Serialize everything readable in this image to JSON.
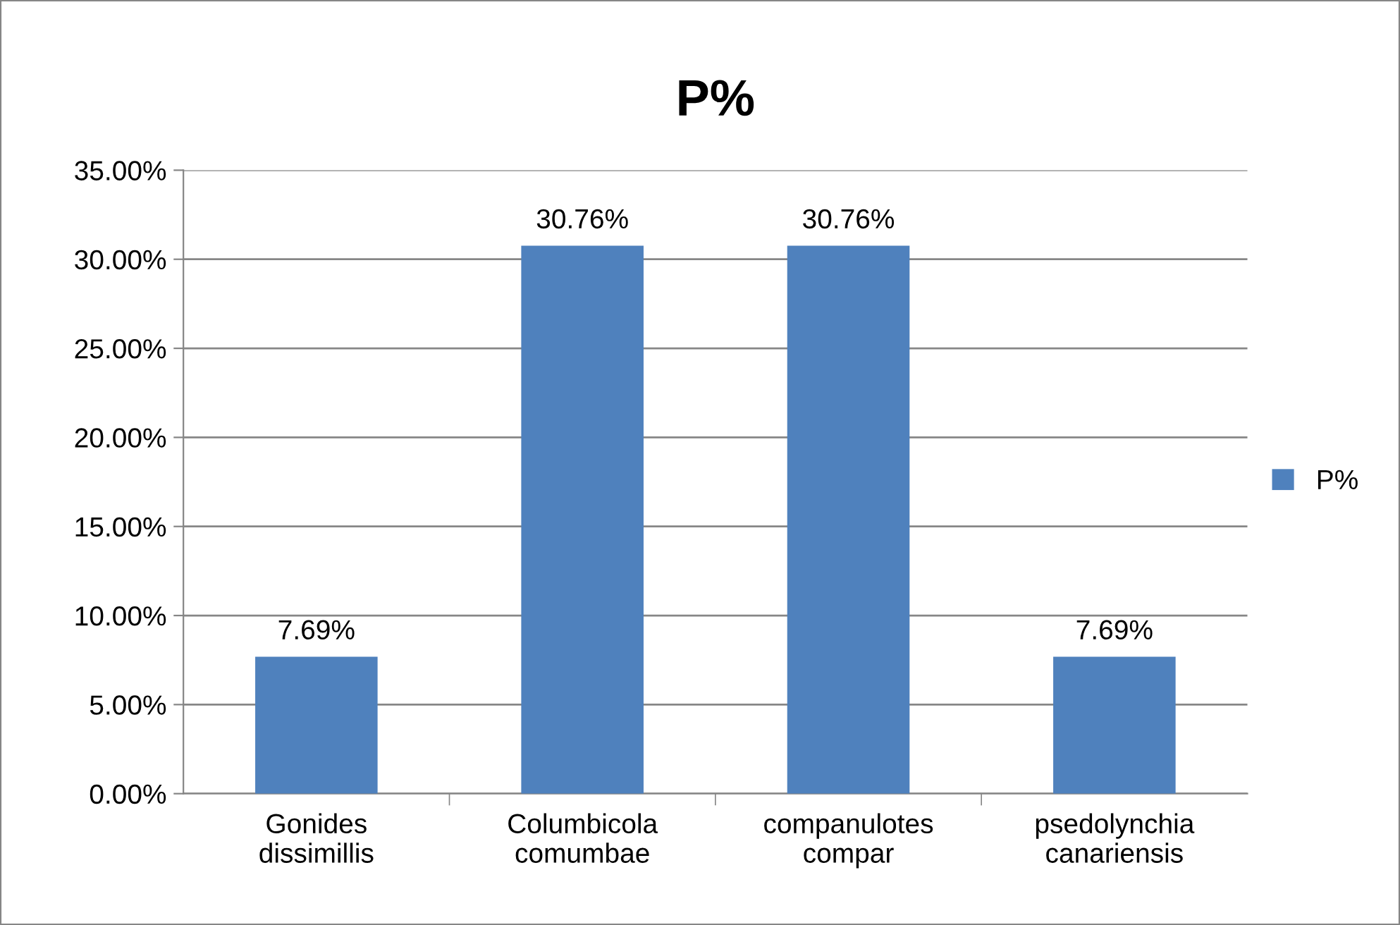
{
  "chart_data": {
    "type": "bar",
    "title": "P%",
    "categories": [
      "Gonides\ndissimillis",
      "Columbicola\ncomumbae",
      "companulotes\ncompar",
      "psedolynchia\ncanariensis"
    ],
    "series": [
      {
        "name": "P%",
        "color": "#4f81bd",
        "values": [
          7.69,
          30.76,
          30.76,
          7.69
        ],
        "value_labels": [
          "7.69%",
          "30.76%",
          "30.76%",
          "7.69%"
        ]
      }
    ],
    "ylim": [
      0,
      35
    ],
    "yticks": [
      {
        "value": 0,
        "label": "0.00%"
      },
      {
        "value": 5,
        "label": "5.00%"
      },
      {
        "value": 10,
        "label": "10.00%"
      },
      {
        "value": 15,
        "label": "15.00%"
      },
      {
        "value": 20,
        "label": "20.00%"
      },
      {
        "value": 25,
        "label": "25.00%"
      },
      {
        "value": 30,
        "label": "30.00%"
      },
      {
        "value": 35,
        "label": "35.00%"
      }
    ],
    "grid": "y",
    "legend": "right"
  }
}
